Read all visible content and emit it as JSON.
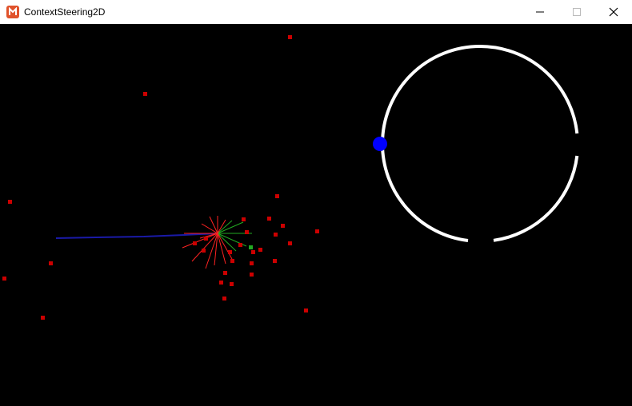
{
  "window": {
    "title": "ContextSteering2D",
    "icon": "monogame-icon",
    "controls": [
      "minimize-icon",
      "maximize-icon",
      "close-icon"
    ]
  },
  "scene": {
    "background": "#000000",
    "obstacle_color": "#cc0000",
    "agent_color": "#0000ff",
    "ring_color": "#ffffff",
    "target_color": "#22aa22",
    "danger_ray_color": "#ff2222",
    "interest_ray_color": "#22aa22",
    "trail_color": "#1a1aa8"
  }
}
